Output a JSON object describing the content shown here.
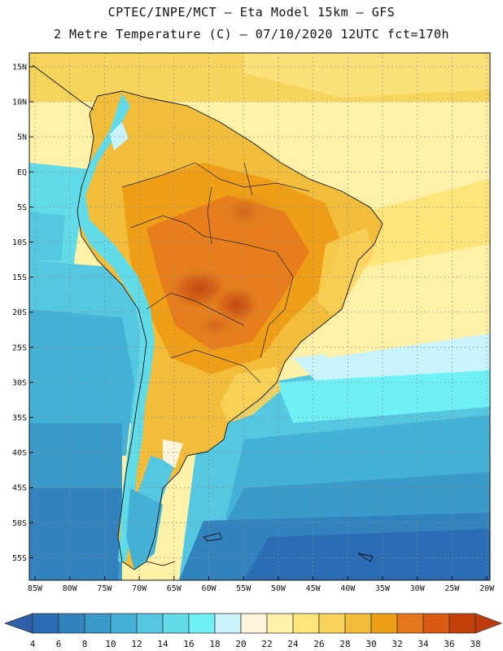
{
  "header": {
    "line1": "CPTEC/INPE/MCT –  Eta Model 15km – GFS",
    "line2": "2 Metre Temperature (C) – 07/10/2020 12UTC fct=170h"
  },
  "map": {
    "lat_labels": [
      "15N",
      "10N",
      "5N",
      "EQ",
      "5S",
      "10S",
      "15S",
      "20S",
      "25S",
      "30S",
      "35S",
      "40S",
      "45S",
      "50S",
      "55S"
    ],
    "lon_labels": [
      "85W",
      "80W",
      "75W",
      "70W",
      "65W",
      "60W",
      "55W",
      "50W",
      "45W",
      "40W",
      "35W",
      "30W",
      "25W",
      "20W"
    ]
  },
  "colorbar": {
    "labels": [
      "4",
      "6",
      "8",
      "10",
      "12",
      "14",
      "16",
      "18",
      "20",
      "22",
      "24",
      "26",
      "28",
      "30",
      "32",
      "34",
      "36",
      "38"
    ],
    "colors": [
      "#2a6db5",
      "#3182bd",
      "#3a9ac9",
      "#44b2d6",
      "#55c7e0",
      "#62dbe8",
      "#6ff0f5",
      "#c8f3fb",
      "#fff5dc",
      "#fff1a8",
      "#ffe47a",
      "#f9d25a",
      "#f1bd3a",
      "#ee9f17",
      "#e5781c",
      "#d95a10",
      "#c4400b"
    ],
    "left_cap_color": "#2e5fa8",
    "right_cap_color": "#c03a0c"
  }
}
